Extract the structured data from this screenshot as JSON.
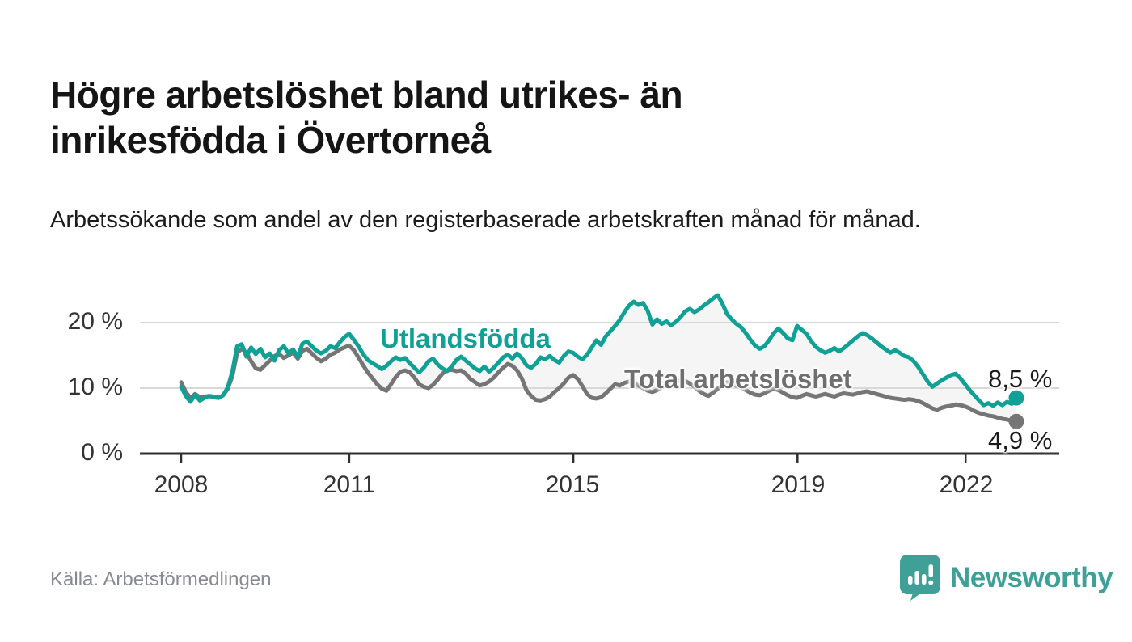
{
  "header": {
    "title": "Högre arbetslöshet bland utrikes- än inrikesfödda i Övertorneå",
    "subtitle": "Arbetssökande som andel av den registerbaserade arbetskraften månad för månad."
  },
  "footer": {
    "source": "Källa: Arbetsförmedlingen",
    "brand_name": "Newsworthy",
    "brand_icon": "newsworthy-speech-bubble-bar-chart-icon"
  },
  "colors": {
    "series_teal": "#0fa195",
    "series_gray": "#757575",
    "between_fill": "#f4f4f4",
    "grid": "#d8d8d8",
    "axis": "#2f2f2f",
    "title_text": "#151515",
    "tick_text": "#333333",
    "source_text": "#898993",
    "brand_teal": "#3fa098"
  },
  "chart_data": {
    "type": "line",
    "title": "Högre arbetslöshet bland utrikes- än inrikesfödda i Övertorneå",
    "xlabel": "",
    "ylabel": "",
    "x_unit": "month",
    "x_start": "2008-01",
    "x_end": "2022-12",
    "ylim": [
      0,
      25
    ],
    "grid": "horizontal",
    "legend_position": "inline-labels-on-lines",
    "yticks": [
      {
        "value": 0,
        "label": "0 %"
      },
      {
        "value": 10,
        "label": "10 %"
      },
      {
        "value": 20,
        "label": "20 %"
      }
    ],
    "xticks": [
      {
        "year": 2008,
        "label": "2008"
      },
      {
        "year": 2011,
        "label": "2011"
      },
      {
        "year": 2015,
        "label": "2015"
      },
      {
        "year": 2019,
        "label": "2019"
      },
      {
        "year": 2022,
        "label": "2022"
      }
    ],
    "series": [
      {
        "name": "Utlandsfödda",
        "color": "#0fa195",
        "end_value_label": "8,5 %",
        "end_value": 8.5,
        "values": [
          10.2,
          8.8,
          7.9,
          9.0,
          8.1,
          8.5,
          8.8,
          8.7,
          8.5,
          8.9,
          10.1,
          12.6,
          16.4,
          16.7,
          14.8,
          16.2,
          15.2,
          16.0,
          14.7,
          15.3,
          14.2,
          15.8,
          16.4,
          15.3,
          15.9,
          14.8,
          16.8,
          17.1,
          16.4,
          15.7,
          15.3,
          15.7,
          16.4,
          16.1,
          17.0,
          17.8,
          18.3,
          17.4,
          16.4,
          15.2,
          14.3,
          13.8,
          13.4,
          12.9,
          13.4,
          14.1,
          14.7,
          14.3,
          14.6,
          13.8,
          13.1,
          12.4,
          13.1,
          14.1,
          14.5,
          13.6,
          13.0,
          12.6,
          13.3,
          14.3,
          14.8,
          14.2,
          13.6,
          13.0,
          12.6,
          13.3,
          12.5,
          13.1,
          13.9,
          14.7,
          15.1,
          14.5,
          15.3,
          14.6,
          13.5,
          13.1,
          13.7,
          14.7,
          14.4,
          14.9,
          14.3,
          13.9,
          14.9,
          15.6,
          15.4,
          14.8,
          14.4,
          15.1,
          16.2,
          17.3,
          16.6,
          17.9,
          18.7,
          19.5,
          20.4,
          21.6,
          22.6,
          23.2,
          22.7,
          23.0,
          21.8,
          19.7,
          20.5,
          19.8,
          20.2,
          19.6,
          20.1,
          20.8,
          21.7,
          22.1,
          21.6,
          22.0,
          22.6,
          23.1,
          23.7,
          24.2,
          22.9,
          21.3,
          20.5,
          19.8,
          19.3,
          18.4,
          17.4,
          16.5,
          16.0,
          16.4,
          17.3,
          18.4,
          19.1,
          18.4,
          17.6,
          17.3,
          19.5,
          18.9,
          18.3,
          17.2,
          16.3,
          15.8,
          15.4,
          15.7,
          16.1,
          15.6,
          16.1,
          16.7,
          17.3,
          17.9,
          18.4,
          18.1,
          17.6,
          17.0,
          16.4,
          15.9,
          15.4,
          15.8,
          15.4,
          14.9,
          14.7,
          14.1,
          13.2,
          12.1,
          11.0,
          10.2,
          10.7,
          11.2,
          11.6,
          12.0,
          12.2,
          11.5,
          10.6,
          9.7,
          8.9,
          8.1,
          7.4,
          7.7,
          7.3,
          7.8,
          7.4,
          7.9,
          7.6,
          8.5
        ]
      },
      {
        "name": "Total arbetslöshet",
        "color": "#757575",
        "end_value_label": "4,9 %",
        "end_value": 4.9,
        "values": [
          10.9,
          9.4,
          8.5,
          9.1,
          8.6,
          8.7,
          8.8,
          8.6,
          8.5,
          8.9,
          9.9,
          11.9,
          15.4,
          16.0,
          15.4,
          14.1,
          13.0,
          12.8,
          13.5,
          14.2,
          14.9,
          15.2,
          14.6,
          15.0,
          15.4,
          14.5,
          15.7,
          16.0,
          15.3,
          14.6,
          14.1,
          14.5,
          15.1,
          15.4,
          15.9,
          16.2,
          16.5,
          15.8,
          14.7,
          13.5,
          12.4,
          11.5,
          10.6,
          9.9,
          9.6,
          10.6,
          11.7,
          12.5,
          12.7,
          12.4,
          11.6,
          10.6,
          10.2,
          10.0,
          10.5,
          11.3,
          12.2,
          12.7,
          12.8,
          12.6,
          12.7,
          12.2,
          11.4,
          10.9,
          10.4,
          10.6,
          11.0,
          11.6,
          12.4,
          13.1,
          13.7,
          13.4,
          12.7,
          11.5,
          9.7,
          8.8,
          8.2,
          8.1,
          8.3,
          8.7,
          9.4,
          10.0,
          10.7,
          11.6,
          12.0,
          11.4,
          10.3,
          9.1,
          8.5,
          8.4,
          8.6,
          9.2,
          9.9,
          10.6,
          10.4,
          10.8,
          11.0,
          10.8,
          10.4,
          10.0,
          9.6,
          9.4,
          9.7,
          10.1,
          10.5,
          10.8,
          11.0,
          11.2,
          11.1,
          10.7,
          10.2,
          9.6,
          9.1,
          8.8,
          9.3,
          9.9,
          10.4,
          10.9,
          10.7,
          10.3,
          10.1,
          9.7,
          9.3,
          9.0,
          8.9,
          9.2,
          9.6,
          9.9,
          9.7,
          9.3,
          8.9,
          8.6,
          8.5,
          8.8,
          9.1,
          8.9,
          8.7,
          8.9,
          9.1,
          8.9,
          8.7,
          9.0,
          9.2,
          9.1,
          9.0,
          9.2,
          9.4,
          9.5,
          9.3,
          9.1,
          8.9,
          8.7,
          8.5,
          8.4,
          8.3,
          8.2,
          8.3,
          8.2,
          8.0,
          7.7,
          7.3,
          6.9,
          6.7,
          7.0,
          7.2,
          7.3,
          7.5,
          7.4,
          7.2,
          6.9,
          6.5,
          6.2,
          6.0,
          5.8,
          5.7,
          5.5,
          5.3,
          5.2,
          5.0,
          4.9
        ]
      }
    ]
  }
}
